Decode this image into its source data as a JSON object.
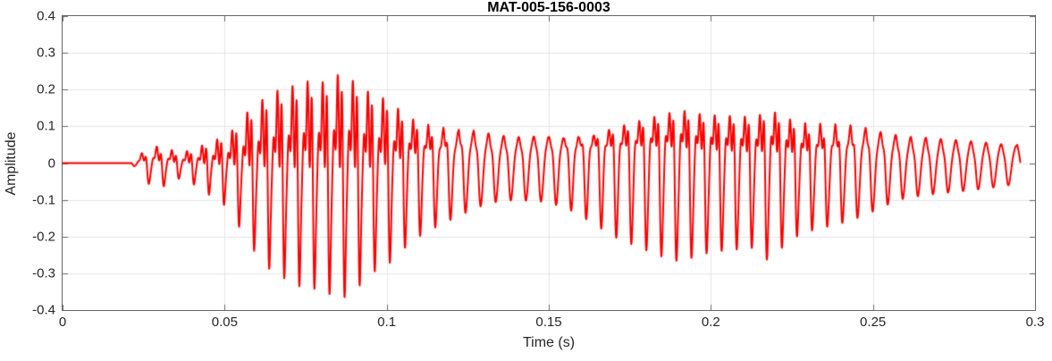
{
  "figure": {
    "background_color": "#ffffff"
  },
  "chart_data": {
    "type": "line",
    "title": "MAT-005-156-0003",
    "xlabel": "Time (s)",
    "ylabel": "Amplitude",
    "xlim": [
      0,
      0.3
    ],
    "ylim": [
      -0.4,
      0.4
    ],
    "xticks": {
      "values": [
        0,
        0.05,
        0.1,
        0.15,
        0.2,
        0.25,
        0.3
      ],
      "labels": [
        "0",
        "0.05",
        "0.1",
        "0.15",
        "0.2",
        "0.25",
        "0.3"
      ]
    },
    "yticks": {
      "values": [
        0.4,
        0.3,
        0.2,
        0.1,
        0,
        -0.1,
        -0.2,
        -0.3,
        -0.4
      ],
      "labels": [
        "0.4",
        "0.3",
        "0.2",
        "0.1",
        "0",
        "-0.1",
        "-0.2",
        "-0.3",
        "-0.4"
      ]
    },
    "grid": true,
    "legend": "none",
    "line_color": "#ff0000",
    "line_width": 2,
    "axis_color": "#666666",
    "grid_color": "#e4e4e4",
    "tick_label_color": "#262626",
    "title_color": "#000000",
    "signal": {
      "description": "Speech-like audio waveform: silence until ~0.021 s, small onset burst ~0.028 s, large voiced burst peaking ~0.375 at ~0.085 s, quieter quasi-sinusoidal span ~0.13-0.15 s, second voiced burst peaking ~0.27 at ~0.19 s and ~0.218 s, decaying tail ending ~0.2955 s",
      "f0_hz": 215,
      "duration_s": 0.2955,
      "sample_dt_s": 8e-05,
      "envelope": [
        [
          0.0,
          0.0
        ],
        [
          0.021,
          0.0
        ],
        [
          0.0225,
          0.012
        ],
        [
          0.0245,
          0.04
        ],
        [
          0.028,
          0.068
        ],
        [
          0.032,
          0.062
        ],
        [
          0.036,
          0.042
        ],
        [
          0.04,
          0.055
        ],
        [
          0.044,
          0.08
        ],
        [
          0.048,
          0.1
        ],
        [
          0.052,
          0.13
        ],
        [
          0.056,
          0.2
        ],
        [
          0.06,
          0.25
        ],
        [
          0.065,
          0.3
        ],
        [
          0.07,
          0.32
        ],
        [
          0.075,
          0.345
        ],
        [
          0.08,
          0.34
        ],
        [
          0.085,
          0.375
        ],
        [
          0.09,
          0.35
        ],
        [
          0.095,
          0.3
        ],
        [
          0.1,
          0.28
        ],
        [
          0.105,
          0.235
        ],
        [
          0.11,
          0.2
        ],
        [
          0.116,
          0.17
        ],
        [
          0.122,
          0.145
        ],
        [
          0.128,
          0.12
        ],
        [
          0.134,
          0.105
        ],
        [
          0.14,
          0.1
        ],
        [
          0.148,
          0.105
        ],
        [
          0.155,
          0.12
        ],
        [
          0.162,
          0.155
        ],
        [
          0.17,
          0.2
        ],
        [
          0.178,
          0.23
        ],
        [
          0.185,
          0.255
        ],
        [
          0.191,
          0.27
        ],
        [
          0.196,
          0.25
        ],
        [
          0.202,
          0.24
        ],
        [
          0.208,
          0.235
        ],
        [
          0.214,
          0.23
        ],
        [
          0.218,
          0.27
        ],
        [
          0.222,
          0.23
        ],
        [
          0.228,
          0.19
        ],
        [
          0.235,
          0.175
        ],
        [
          0.242,
          0.16
        ],
        [
          0.248,
          0.14
        ],
        [
          0.254,
          0.115
        ],
        [
          0.26,
          0.095
        ],
        [
          0.268,
          0.085
        ],
        [
          0.276,
          0.078
        ],
        [
          0.284,
          0.07
        ],
        [
          0.29,
          0.063
        ],
        [
          0.2955,
          0.055
        ]
      ],
      "harmonics": [
        {
          "mult": 1,
          "phase": 0.0,
          "weights": [
            [
              0,
              1
            ],
            [
              0.3,
              1
            ]
          ]
        },
        {
          "mult": 2,
          "phase": 1.7,
          "weights": [
            [
              0,
              0.1
            ],
            [
              0.045,
              0.45
            ],
            [
              0.11,
              0.5
            ],
            [
              0.128,
              0.2
            ],
            [
              0.15,
              0.22
            ],
            [
              0.165,
              0.5
            ],
            [
              0.225,
              0.5
            ],
            [
              0.248,
              0.25
            ],
            [
              0.265,
              0.15
            ],
            [
              0.2955,
              0.12
            ]
          ]
        },
        {
          "mult": 3,
          "phase": 3.6,
          "weights": [
            [
              0,
              0.05
            ],
            [
              0.045,
              0.55
            ],
            [
              0.1,
              0.55
            ],
            [
              0.125,
              0.12
            ],
            [
              0.15,
              0.08
            ],
            [
              0.168,
              0.3
            ],
            [
              0.222,
              0.38
            ],
            [
              0.25,
              0.12
            ],
            [
              0.2955,
              0.05
            ]
          ]
        },
        {
          "mult": 4,
          "phase": 0.9,
          "weights": [
            [
              0,
              0.0
            ],
            [
              0.05,
              0.3
            ],
            [
              0.095,
              0.32
            ],
            [
              0.12,
              0.05
            ],
            [
              0.16,
              0.03
            ],
            [
              0.19,
              0.18
            ],
            [
              0.225,
              0.2
            ],
            [
              0.25,
              0.04
            ],
            [
              0.2955,
              0.02
            ]
          ]
        }
      ]
    }
  }
}
